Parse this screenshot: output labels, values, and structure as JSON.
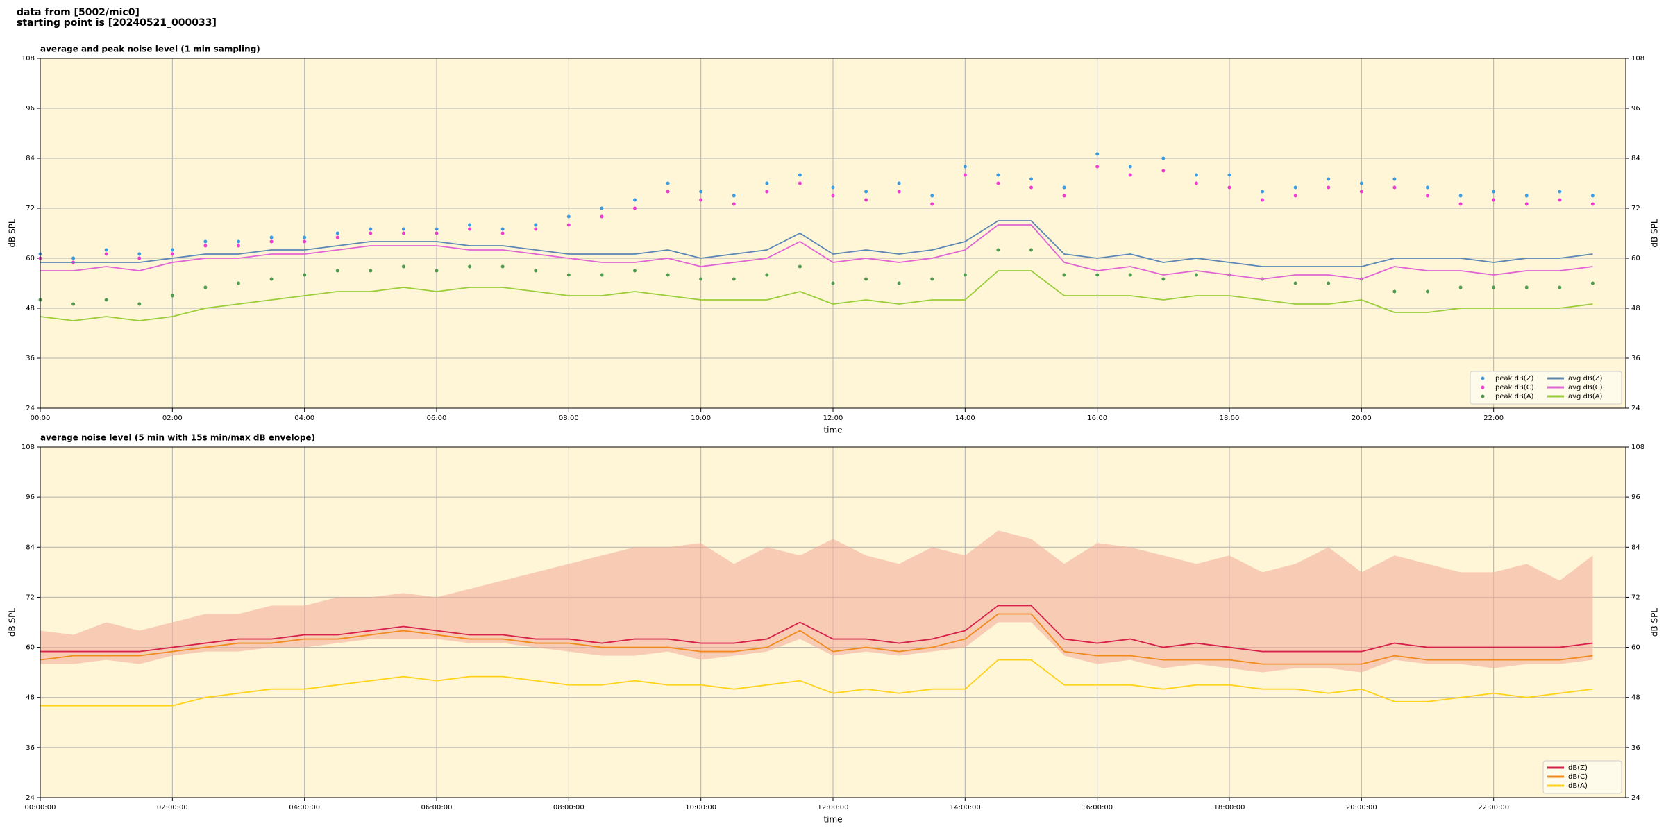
{
  "header": {
    "lines": [
      "data from [5002/mic0]",
      "starting point is [20240521_000033]"
    ]
  },
  "chart_data": [
    {
      "type": "line",
      "title": "average and peak noise level (1 min sampling)",
      "xlabel": "time",
      "ylabel": "dB SPL",
      "x": [
        0,
        0.5,
        1,
        1.5,
        2,
        2.5,
        3,
        3.5,
        4,
        4.5,
        5,
        5.5,
        6,
        6.5,
        7,
        7.5,
        8,
        8.5,
        9,
        9.5,
        10,
        10.5,
        11,
        11.5,
        12,
        12.5,
        13,
        13.5,
        14,
        14.5,
        15,
        15.5,
        16,
        16.5,
        17,
        17.5,
        18,
        18.5,
        19,
        19.5,
        20,
        20.5,
        21,
        21.5,
        22,
        22.5,
        23,
        23.5
      ],
      "xlim": [
        0,
        24
      ],
      "xticks": [
        {
          "value": 0,
          "label": "00:00"
        },
        {
          "value": 2,
          "label": "02:00"
        },
        {
          "value": 4,
          "label": "04:00"
        },
        {
          "value": 6,
          "label": "06:00"
        },
        {
          "value": 8,
          "label": "08:00"
        },
        {
          "value": 10,
          "label": "10:00"
        },
        {
          "value": 12,
          "label": "12:00"
        },
        {
          "value": 14,
          "label": "14:00"
        },
        {
          "value": 16,
          "label": "16:00"
        },
        {
          "value": 18,
          "label": "18:00"
        },
        {
          "value": 20,
          "label": "20:00"
        },
        {
          "value": 22,
          "label": "22:00"
        }
      ],
      "ylim": [
        24,
        108
      ],
      "yticks": [
        24,
        36,
        48,
        60,
        72,
        84,
        96,
        108
      ],
      "grid": true,
      "legend": "lower right",
      "legend_columns": 2,
      "background": "#fff6d8",
      "series": [
        {
          "name": "peak dB(Z)",
          "style": "points",
          "color": "#3b9be0",
          "values": [
            61,
            60,
            62,
            61,
            62,
            64,
            64,
            65,
            65,
            66,
            67,
            67,
            67,
            68,
            67,
            68,
            70,
            72,
            74,
            78,
            76,
            75,
            78,
            80,
            77,
            76,
            78,
            75,
            82,
            80,
            79,
            77,
            85,
            82,
            84,
            80,
            80,
            76,
            77,
            79,
            78,
            79,
            77,
            75,
            76,
            75,
            76,
            75
          ]
        },
        {
          "name": "peak dB(C)",
          "style": "points",
          "color": "#ec3ccf",
          "values": [
            60,
            59,
            61,
            60,
            61,
            63,
            63,
            64,
            64,
            65,
            66,
            66,
            66,
            67,
            66,
            67,
            68,
            70,
            72,
            76,
            74,
            73,
            76,
            78,
            75,
            74,
            76,
            73,
            80,
            78,
            77,
            75,
            82,
            80,
            81,
            78,
            77,
            74,
            75,
            77,
            76,
            77,
            75,
            73,
            74,
            73,
            74,
            73
          ]
        },
        {
          "name": "peak dB(A)",
          "style": "points",
          "color": "#4f9a4f",
          "values": [
            50,
            49,
            50,
            49,
            51,
            53,
            54,
            55,
            56,
            57,
            57,
            58,
            57,
            58,
            58,
            57,
            56,
            56,
            57,
            56,
            55,
            55,
            56,
            58,
            54,
            55,
            54,
            55,
            56,
            62,
            62,
            56,
            56,
            56,
            55,
            56,
            56,
            55,
            54,
            54,
            55,
            52,
            52,
            53,
            53,
            53,
            53,
            54
          ]
        },
        {
          "name": "avg dB(Z)",
          "style": "line",
          "color": "#5b87b5",
          "values": [
            59,
            59,
            59,
            59,
            60,
            61,
            61,
            62,
            62,
            63,
            64,
            64,
            64,
            63,
            63,
            62,
            61,
            61,
            61,
            62,
            60,
            61,
            62,
            66,
            61,
            62,
            61,
            62,
            64,
            69,
            69,
            61,
            60,
            61,
            59,
            60,
            59,
            58,
            58,
            58,
            58,
            60,
            60,
            60,
            59,
            60,
            60,
            61
          ]
        },
        {
          "name": "avg dB(C)",
          "style": "line",
          "color": "#e064d4",
          "values": [
            57,
            57,
            58,
            57,
            59,
            60,
            60,
            61,
            61,
            62,
            63,
            63,
            63,
            62,
            62,
            61,
            60,
            59,
            59,
            60,
            58,
            59,
            60,
            64,
            59,
            60,
            59,
            60,
            62,
            68,
            68,
            59,
            57,
            58,
            56,
            57,
            56,
            55,
            56,
            56,
            55,
            58,
            57,
            57,
            56,
            57,
            57,
            58
          ]
        },
        {
          "name": "avg dB(A)",
          "style": "line",
          "color": "#9acd3a",
          "values": [
            46,
            45,
            46,
            45,
            46,
            48,
            49,
            50,
            51,
            52,
            52,
            53,
            52,
            53,
            53,
            52,
            51,
            51,
            52,
            51,
            50,
            50,
            50,
            52,
            49,
            50,
            49,
            50,
            50,
            57,
            57,
            51,
            51,
            51,
            50,
            51,
            51,
            50,
            49,
            49,
            50,
            47,
            47,
            48,
            48,
            48,
            48,
            49
          ]
        }
      ]
    },
    {
      "type": "line",
      "title": "average noise level (5 min with 15s min/max dB envelope)",
      "xlabel": "time",
      "ylabel": "dB SPL",
      "x": [
        0,
        0.5,
        1,
        1.5,
        2,
        2.5,
        3,
        3.5,
        4,
        4.5,
        5,
        5.5,
        6,
        6.5,
        7,
        7.5,
        8,
        8.5,
        9,
        9.5,
        10,
        10.5,
        11,
        11.5,
        12,
        12.5,
        13,
        13.5,
        14,
        14.5,
        15,
        15.5,
        16,
        16.5,
        17,
        17.5,
        18,
        18.5,
        19,
        19.5,
        20,
        20.5,
        21,
        21.5,
        22,
        22.5,
        23,
        23.5
      ],
      "xlim": [
        0,
        24
      ],
      "xticks": [
        {
          "value": 0,
          "label": "00:00:00"
        },
        {
          "value": 2,
          "label": "02:00:00"
        },
        {
          "value": 4,
          "label": "04:00:00"
        },
        {
          "value": 6,
          "label": "06:00:00"
        },
        {
          "value": 8,
          "label": "08:00:00"
        },
        {
          "value": 10,
          "label": "10:00:00"
        },
        {
          "value": 12,
          "label": "12:00:00"
        },
        {
          "value": 14,
          "label": "14:00:00"
        },
        {
          "value": 16,
          "label": "16:00:00"
        },
        {
          "value": 18,
          "label": "18:00:00"
        },
        {
          "value": 20,
          "label": "20:00:00"
        },
        {
          "value": 22,
          "label": "22:00:00"
        }
      ],
      "ylim": [
        24,
        108
      ],
      "yticks": [
        24,
        36,
        48,
        60,
        72,
        84,
        96,
        108
      ],
      "grid": true,
      "legend": "lower right",
      "legend_columns": 1,
      "background": "#fff6d8",
      "envelope": {
        "color": "#f4b09c",
        "high": [
          64,
          63,
          66,
          64,
          66,
          68,
          68,
          70,
          70,
          72,
          72,
          73,
          72,
          74,
          76,
          78,
          80,
          82,
          84,
          84,
          85,
          80,
          84,
          82,
          86,
          82,
          80,
          84,
          82,
          88,
          86,
          80,
          85,
          84,
          82,
          80,
          82,
          78,
          80,
          84,
          78,
          82,
          80,
          78,
          78,
          80,
          76,
          82
        ],
        "low": [
          56,
          56,
          57,
          56,
          58,
          59,
          59,
          60,
          60,
          61,
          62,
          62,
          62,
          61,
          61,
          60,
          59,
          58,
          58,
          59,
          57,
          58,
          59,
          62,
          58,
          59,
          58,
          59,
          60,
          66,
          66,
          58,
          56,
          57,
          55,
          56,
          55,
          54,
          55,
          55,
          54,
          57,
          56,
          56,
          55,
          56,
          56,
          57
        ]
      },
      "series": [
        {
          "name": "dB(Z)",
          "style": "line",
          "color": "#d6204a",
          "values": [
            59,
            59,
            59,
            59,
            60,
            61,
            62,
            62,
            63,
            63,
            64,
            65,
            64,
            63,
            63,
            62,
            62,
            61,
            62,
            62,
            61,
            61,
            62,
            66,
            62,
            62,
            61,
            62,
            64,
            70,
            70,
            62,
            61,
            62,
            60,
            61,
            60,
            59,
            59,
            59,
            59,
            61,
            60,
            60,
            60,
            60,
            60,
            61
          ]
        },
        {
          "name": "dB(C)",
          "style": "line",
          "color": "#f08a1c",
          "values": [
            57,
            58,
            58,
            58,
            59,
            60,
            61,
            61,
            62,
            62,
            63,
            64,
            63,
            62,
            62,
            61,
            61,
            60,
            60,
            60,
            59,
            59,
            60,
            64,
            59,
            60,
            59,
            60,
            62,
            68,
            68,
            59,
            58,
            58,
            57,
            57,
            57,
            56,
            56,
            56,
            56,
            58,
            57,
            57,
            57,
            57,
            57,
            58
          ]
        },
        {
          "name": "dB(A)",
          "style": "line",
          "color": "#ffd21a",
          "values": [
            46,
            46,
            46,
            46,
            46,
            48,
            49,
            50,
            50,
            51,
            52,
            53,
            52,
            53,
            53,
            52,
            51,
            51,
            52,
            51,
            51,
            50,
            51,
            52,
            49,
            50,
            49,
            50,
            50,
            57,
            57,
            51,
            51,
            51,
            50,
            51,
            51,
            50,
            50,
            49,
            50,
            47,
            47,
            48,
            49,
            48,
            49,
            50
          ]
        }
      ]
    }
  ]
}
